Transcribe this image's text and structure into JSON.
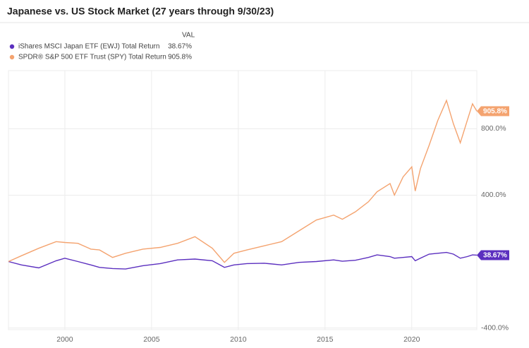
{
  "chart_data": {
    "type": "line",
    "title": "Japanese vs. US Stock Market (27 years through 9/30/23)",
    "legend_header": "VAL",
    "xlim": [
      1996.75,
      2023.75
    ],
    "xticks": [
      2000,
      2005,
      2010,
      2015,
      2020
    ],
    "ylim": [
      -410,
      1150
    ],
    "yticks": [
      {
        "value": -400,
        "label": "-400.0%"
      },
      {
        "value": 400,
        "label": "400.0%"
      },
      {
        "value": 800,
        "label": "800.0%"
      }
    ],
    "grid": true,
    "x": [
      1996.75,
      1997.5,
      1998.5,
      1999.5,
      2000.0,
      2000.75,
      2001.5,
      2002.0,
      2002.75,
      2003.5,
      2004.5,
      2005.5,
      2006.5,
      2007.5,
      2008.5,
      2009.2,
      2009.75,
      2010.5,
      2011.5,
      2012.5,
      2013.5,
      2014.5,
      2015.5,
      2016.0,
      2016.75,
      2017.5,
      2018.0,
      2018.75,
      2019.0,
      2019.5,
      2020.0,
      2020.2,
      2020.5,
      2021.0,
      2021.5,
      2022.0,
      2022.4,
      2022.8,
      2023.2,
      2023.5,
      2023.75
    ],
    "series": [
      {
        "name": "iShares MSCI Japan ETF (EWJ) Total Return",
        "color": "#5b2fbf",
        "values": [
          0,
          -20,
          -38,
          5,
          20,
          0,
          -20,
          -35,
          -42,
          -45,
          -25,
          -12,
          10,
          15,
          5,
          -35,
          -20,
          -12,
          -10,
          -20,
          -5,
          0,
          10,
          2,
          8,
          25,
          40,
          30,
          20,
          25,
          30,
          5,
          20,
          45,
          50,
          55,
          45,
          20,
          30,
          40,
          38.67
        ],
        "value_labels": [
          null,
          null,
          null,
          null,
          null,
          null,
          null,
          null,
          null,
          null,
          null,
          null,
          null,
          null,
          null,
          null,
          null,
          null,
          null,
          null,
          null,
          null,
          null,
          null,
          null,
          null,
          null,
          null,
          null,
          null,
          null,
          null,
          null,
          null,
          null,
          null,
          null,
          null,
          null,
          null,
          "38.67%"
        ]
      },
      {
        "name": "SPDR® S&P 500 ETF Trust (SPY) Total Return",
        "color": "#f4a36f",
        "values": [
          0,
          35,
          80,
          120,
          115,
          110,
          75,
          70,
          25,
          50,
          75,
          85,
          110,
          150,
          80,
          -5,
          50,
          70,
          95,
          120,
          185,
          250,
          280,
          255,
          300,
          360,
          420,
          470,
          400,
          510,
          570,
          425,
          560,
          700,
          850,
          970,
          830,
          715,
          850,
          950,
          905.8
        ],
        "value_labels": [
          null,
          null,
          null,
          null,
          null,
          null,
          null,
          null,
          null,
          null,
          null,
          null,
          null,
          null,
          null,
          null,
          null,
          null,
          null,
          null,
          null,
          null,
          null,
          null,
          null,
          null,
          null,
          null,
          null,
          null,
          null,
          null,
          null,
          null,
          null,
          null,
          null,
          null,
          null,
          null,
          "905.8%"
        ]
      }
    ]
  }
}
